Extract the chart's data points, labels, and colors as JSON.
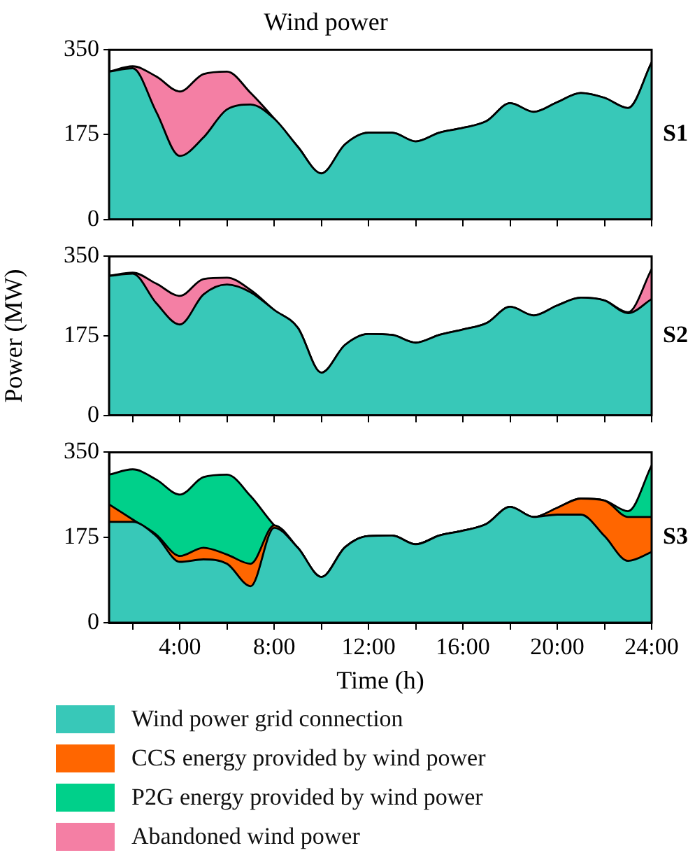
{
  "chart_data": [
    {
      "type": "area",
      "title": "Wind power",
      "stacked": true,
      "legend": "bottom",
      "x": [
        1,
        2,
        3,
        4,
        5,
        6,
        7,
        8,
        9,
        10,
        11,
        12,
        13,
        14,
        15,
        16,
        17,
        18,
        19,
        20,
        21,
        22,
        23,
        24
      ],
      "xlim": [
        1,
        24
      ],
      "xticks": [
        {
          "value": 2,
          "label": null
        },
        {
          "value": 4,
          "label": null
        },
        {
          "value": 6,
          "label": null
        },
        {
          "value": 8,
          "label": null
        },
        {
          "value": 10,
          "label": null
        },
        {
          "value": 12,
          "label": null
        },
        {
          "value": 14,
          "label": null
        },
        {
          "value": 16,
          "label": null
        },
        {
          "value": 18,
          "label": null
        },
        {
          "value": 20,
          "label": null
        },
        {
          "value": 22,
          "label": null
        },
        {
          "value": 24,
          "label": null
        }
      ],
      "ylim": [
        0,
        350
      ],
      "yticks": [
        0,
        175,
        350
      ],
      "tick_labels": "y",
      "annotations": [
        "S1"
      ],
      "series": [
        {
          "name": "Wind power grid connection",
          "color": "#38c8b8",
          "values": [
            305,
            312,
            222,
            131,
            169,
            227,
            237,
            208,
            150,
            95,
            155,
            179,
            179,
            161,
            179,
            189,
            203,
            240,
            222,
            242,
            261,
            251,
            230,
            324
          ]
        },
        {
          "name": "Abandoned wind power",
          "color": "#f47fa4",
          "values": [
            0,
            4,
            73,
            133,
            131,
            78,
            24,
            0,
            0,
            0,
            0,
            0,
            0,
            0,
            0,
            0,
            0,
            0,
            0,
            0,
            0,
            0,
            0,
            0
          ]
        }
      ]
    },
    {
      "type": "area",
      "stacked": true,
      "ylabel": "Power (MW)",
      "legend": "bottom",
      "x": [
        1,
        2,
        3,
        4,
        5,
        6,
        7,
        8,
        9,
        10,
        11,
        12,
        13,
        14,
        15,
        16,
        17,
        18,
        19,
        20,
        21,
        22,
        23,
        24
      ],
      "xlim": [
        1,
        24
      ],
      "xticks": [
        {
          "value": 2,
          "label": null
        },
        {
          "value": 4,
          "label": null
        },
        {
          "value": 6,
          "label": null
        },
        {
          "value": 8,
          "label": null
        },
        {
          "value": 10,
          "label": null
        },
        {
          "value": 12,
          "label": null
        },
        {
          "value": 14,
          "label": null
        },
        {
          "value": 16,
          "label": null
        },
        {
          "value": 18,
          "label": null
        },
        {
          "value": 20,
          "label": null
        },
        {
          "value": 22,
          "label": null
        },
        {
          "value": 24,
          "label": null
        }
      ],
      "ylim": [
        0,
        350
      ],
      "yticks": [
        0,
        175,
        350
      ],
      "tick_labels": "y",
      "annotations": [
        "S2"
      ],
      "series": [
        {
          "name": "Wind power grid connection",
          "color": "#38c8b8",
          "values": [
            307,
            312,
            247,
            200,
            266,
            288,
            271,
            232,
            193,
            94,
            155,
            179,
            177,
            160,
            177,
            189,
            203,
            239,
            220,
            242,
            259,
            253,
            225,
            256
          ]
        },
        {
          "name": "Abandoned wind power",
          "color": "#f47fa4",
          "values": [
            0,
            2,
            43,
            63,
            34,
            15,
            5,
            0,
            0,
            0,
            0,
            0,
            0,
            0,
            0,
            0,
            0,
            0,
            0,
            0,
            0,
            0,
            2,
            66
          ]
        }
      ]
    },
    {
      "type": "area",
      "stacked": true,
      "xlabel": "Time (h)",
      "legend": "bottom",
      "x": [
        1,
        2,
        3,
        4,
        5,
        6,
        7,
        8,
        9,
        10,
        11,
        12,
        13,
        14,
        15,
        16,
        17,
        18,
        19,
        20,
        21,
        22,
        23,
        24
      ],
      "xlim": [
        1,
        24
      ],
      "xticks": [
        {
          "value": 2,
          "label": null
        },
        {
          "value": 4,
          "label": "4:00"
        },
        {
          "value": 6,
          "label": null
        },
        {
          "value": 8,
          "label": "8:00"
        },
        {
          "value": 10,
          "label": null
        },
        {
          "value": 12,
          "label": "12:00"
        },
        {
          "value": 14,
          "label": null
        },
        {
          "value": 16,
          "label": "16:00"
        },
        {
          "value": 18,
          "label": null
        },
        {
          "value": 20,
          "label": "20:00"
        },
        {
          "value": 22,
          "label": null
        },
        {
          "value": 24,
          "label": "24:00"
        }
      ],
      "ylim": [
        0,
        350
      ],
      "yticks": [
        0,
        175,
        350
      ],
      "annotations": [
        "S3"
      ],
      "series": [
        {
          "name": "Wind power grid connection",
          "color": "#38c8b8",
          "values": [
            207,
            207,
            178,
            125,
            130,
            121,
            75,
            195,
            154,
            94,
            155,
            178,
            179,
            161,
            179,
            189,
            203,
            238,
            217,
            222,
            222,
            178,
            127,
            145
          ]
        },
        {
          "name": "CCS energy provided by wind power",
          "color": "#ff6600",
          "values": [
            36,
            5,
            3,
            12,
            24,
            19,
            46,
            5,
            0,
            0,
            0,
            0,
            0,
            0,
            0,
            0,
            0,
            0,
            0,
            14,
            33,
            73,
            90,
            72
          ]
        },
        {
          "name": "P2G energy provided by wind power",
          "color": "#00d08a",
          "values": [
            61,
            103,
            113,
            126,
            145,
            164,
            139,
            0,
            0,
            0,
            0,
            0,
            0,
            0,
            0,
            0,
            0,
            0,
            0,
            0,
            0,
            0,
            12,
            106
          ]
        }
      ]
    }
  ]
}
